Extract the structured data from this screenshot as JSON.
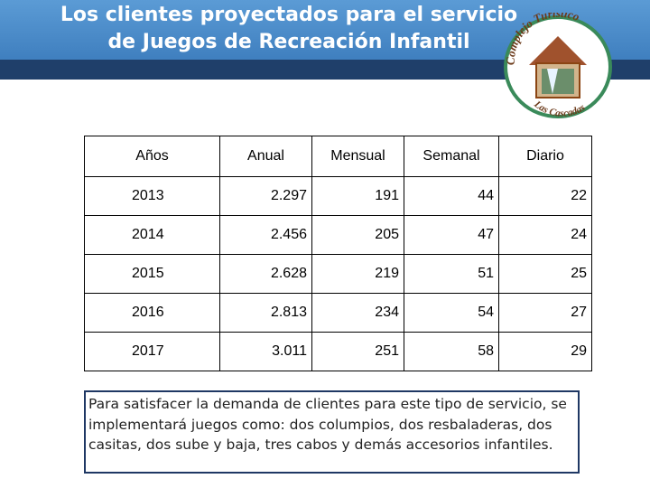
{
  "header": {
    "title": [
      "Los clientes proyectados para el servicio",
      "de Juegos de Recreación Infantil"
    ]
  },
  "logo": {
    "top": "Complejo Turístico",
    "bottom": "Las Cascadas"
  },
  "table": {
    "columns": [
      "Años",
      "Anual",
      "Mensual",
      "Semanal",
      "Diario"
    ],
    "rows": [
      [
        "2013",
        "2.297",
        "191",
        "44",
        "22"
      ],
      [
        "2014",
        "2.456",
        "205",
        "47",
        "24"
      ],
      [
        "2015",
        "2.628",
        "219",
        "51",
        "25"
      ],
      [
        "2016",
        "2.813",
        "234",
        "54",
        "27"
      ],
      [
        "2017",
        "3.011",
        "251",
        "58",
        "29"
      ]
    ]
  },
  "note": "Para satisfacer la demanda de clientes para este tipo de servicio, se implementará juegos como: dos columpios, dos resbaladeras, dos casitas, dos sube y baja, tres cabos y demás accesorios infantiles."
}
